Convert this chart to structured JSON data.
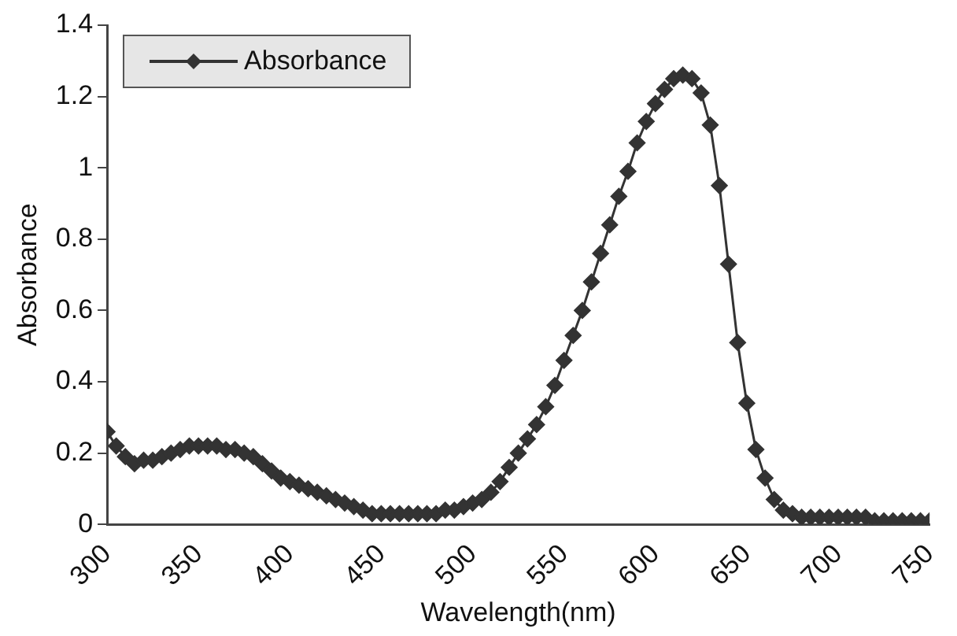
{
  "chart_data": {
    "type": "line",
    "xlabel": "Wavelength(nm)",
    "ylabel": "Absorbance",
    "x": [
      300,
      305,
      310,
      315,
      320,
      325,
      330,
      335,
      340,
      345,
      350,
      355,
      360,
      365,
      370,
      375,
      380,
      385,
      390,
      395,
      400,
      405,
      410,
      415,
      420,
      425,
      430,
      435,
      440,
      445,
      450,
      455,
      460,
      465,
      470,
      475,
      480,
      485,
      490,
      495,
      500,
      505,
      510,
      515,
      520,
      525,
      530,
      535,
      540,
      545,
      550,
      555,
      560,
      565,
      570,
      575,
      580,
      585,
      590,
      595,
      600,
      605,
      610,
      615,
      620,
      625,
      630,
      635,
      640,
      645,
      650,
      655,
      660,
      665,
      670,
      675,
      680,
      685,
      690,
      695,
      700,
      705,
      710,
      715,
      720,
      725,
      730,
      735,
      740,
      745,
      750
    ],
    "series": [
      {
        "name": "Absorbance",
        "color": "#333333",
        "values": [
          0.26,
          0.22,
          0.19,
          0.17,
          0.18,
          0.18,
          0.19,
          0.2,
          0.21,
          0.22,
          0.22,
          0.22,
          0.22,
          0.21,
          0.21,
          0.2,
          0.19,
          0.17,
          0.15,
          0.13,
          0.12,
          0.11,
          0.1,
          0.09,
          0.08,
          0.07,
          0.06,
          0.05,
          0.04,
          0.03,
          0.03,
          0.03,
          0.03,
          0.03,
          0.03,
          0.03,
          0.03,
          0.04,
          0.04,
          0.05,
          0.06,
          0.07,
          0.09,
          0.12,
          0.16,
          0.2,
          0.24,
          0.28,
          0.33,
          0.39,
          0.46,
          0.53,
          0.6,
          0.68,
          0.76,
          0.84,
          0.92,
          0.99,
          1.07,
          1.13,
          1.18,
          1.22,
          1.25,
          1.26,
          1.25,
          1.21,
          1.12,
          0.95,
          0.73,
          0.51,
          0.34,
          0.21,
          0.13,
          0.07,
          0.04,
          0.03,
          0.02,
          0.02,
          0.02,
          0.02,
          0.02,
          0.02,
          0.02,
          0.02,
          0.01,
          0.01,
          0.01,
          0.01,
          0.01,
          0.01,
          0.01
        ]
      }
    ],
    "xlim": [
      300,
      750
    ],
    "xticks": [
      300,
      350,
      400,
      450,
      500,
      550,
      600,
      650,
      700,
      750
    ],
    "ylim": [
      0,
      1.4
    ],
    "yticks": [
      0,
      0.2,
      0.4,
      0.6,
      0.8,
      1,
      1.2,
      1.4
    ],
    "marker": "diamond",
    "line_style": "solid",
    "legend": "top left",
    "grid": false
  }
}
